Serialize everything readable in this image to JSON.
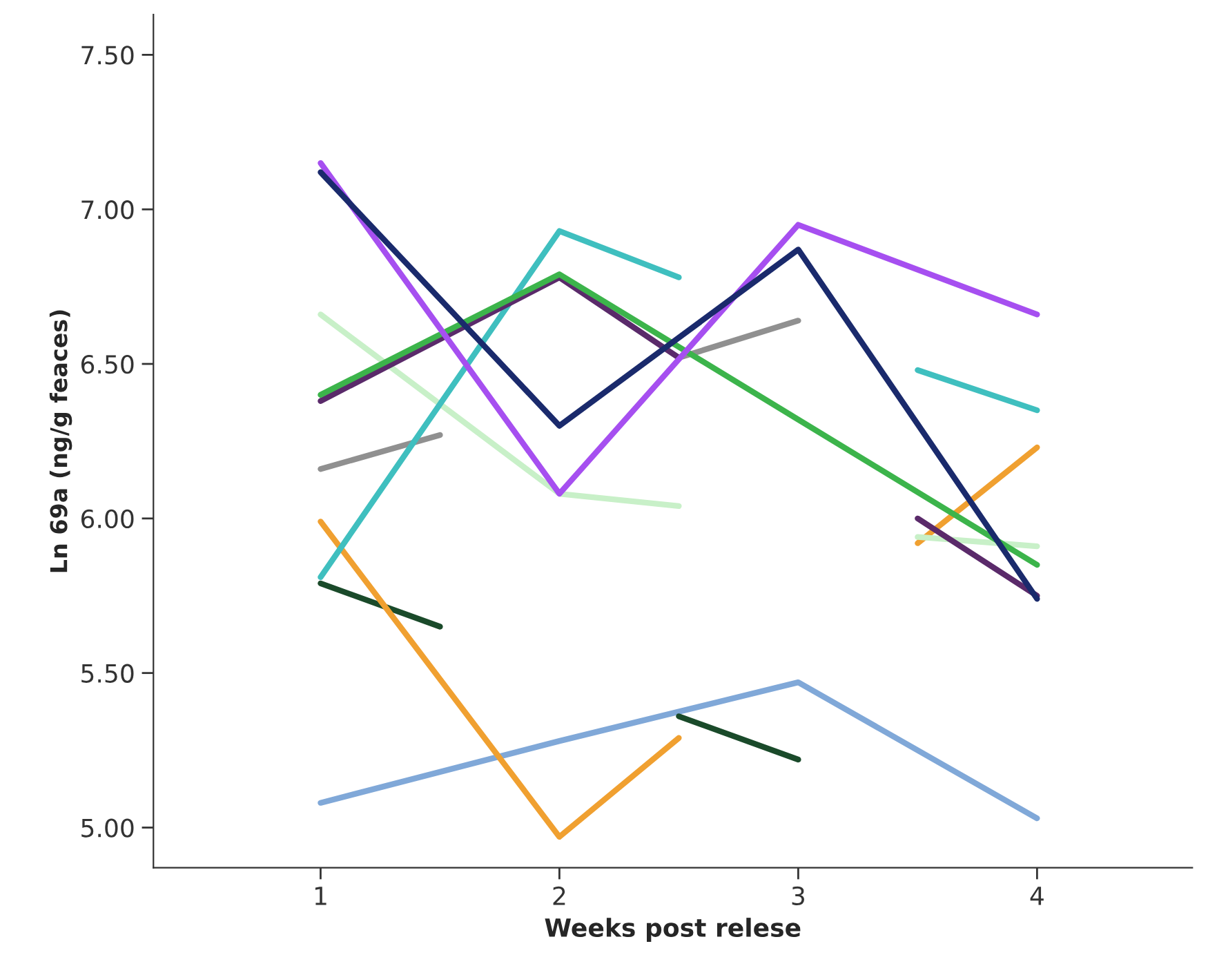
{
  "chart_data": {
    "type": "line",
    "xlabel": "Weeks post relese",
    "ylabel": "Ln 69a (ng/g feaces)",
    "xlim": [
      0.3,
      4.65
    ],
    "xticks": [
      1,
      2,
      3,
      4
    ],
    "ylim": [
      4.87,
      7.63
    ],
    "yticks": [
      {
        "value": 5.0,
        "label": "5.00"
      },
      {
        "value": 5.5,
        "label": "5.50"
      },
      {
        "value": 6.0,
        "label": "6.00"
      },
      {
        "value": 6.5,
        "label": "6.50"
      },
      {
        "value": 7.0,
        "label": "7.00"
      },
      {
        "value": 7.5,
        "label": "7.50"
      }
    ],
    "grid": false,
    "legend": false,
    "marker": "none",
    "line_style": "solid",
    "series": [
      {
        "color": "#80a8d8",
        "x": [
          1,
          2,
          3,
          4
        ],
        "values": [
          5.08,
          5.28,
          5.47,
          5.03
        ]
      },
      {
        "color": "#1a4a2a",
        "x": [
          1,
          1.5,
          2,
          2.5,
          3
        ],
        "values": [
          5.79,
          5.65,
          null,
          5.36,
          5.22
        ]
      },
      {
        "color": "#f0a030",
        "x": [
          1,
          2,
          2.5,
          3,
          3.5,
          4
        ],
        "values": [
          5.99,
          4.97,
          5.29,
          null,
          5.92,
          6.23
        ]
      },
      {
        "color": "#c8f0c8",
        "x": [
          1,
          2,
          2.5,
          3,
          3.5,
          4
        ],
        "values": [
          6.66,
          6.08,
          6.04,
          null,
          5.94,
          5.91
        ]
      },
      {
        "color": "#909090",
        "x": [
          1,
          1.5,
          2,
          2.5,
          3
        ],
        "values": [
          6.16,
          6.27,
          null,
          6.52,
          6.64
        ]
      },
      {
        "color": "#3fbfbf",
        "x": [
          1,
          2,
          2.5,
          3,
          3.5,
          4
        ],
        "values": [
          5.81,
          6.93,
          6.78,
          null,
          6.48,
          6.35
        ]
      },
      {
        "color": "#5a2a6a",
        "x": [
          1,
          2,
          2.5,
          3,
          3.5,
          4
        ],
        "values": [
          6.38,
          6.78,
          6.52,
          null,
          6.0,
          5.75
        ]
      },
      {
        "color": "#3cb44b",
        "x": [
          1,
          2,
          3,
          4
        ],
        "values": [
          6.4,
          6.79,
          6.32,
          5.85
        ]
      },
      {
        "color": "#a64ff0",
        "x": [
          1,
          2,
          3,
          4
        ],
        "values": [
          7.15,
          6.08,
          6.95,
          6.66
        ]
      },
      {
        "color": "#1a2a6c",
        "x": [
          1,
          2,
          3,
          4
        ],
        "values": [
          7.12,
          6.3,
          6.87,
          5.74
        ]
      }
    ]
  }
}
